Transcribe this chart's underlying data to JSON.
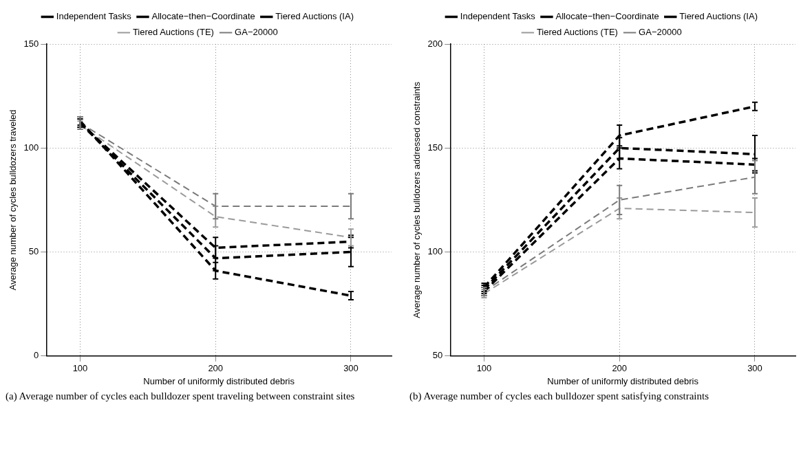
{
  "chart_data": [
    {
      "type": "line",
      "xlabel": "Number of uniformly distributed debris",
      "ylabel": "Average number of cycles bulldozers traveled",
      "x": [
        100,
        200,
        300
      ],
      "xlim": [
        75,
        330
      ],
      "xticks": [
        100,
        200,
        300
      ],
      "ylim": [
        0,
        150
      ],
      "yticks": [
        0,
        50,
        100,
        150
      ],
      "grid": true,
      "legend": "top",
      "line_style": "dashed",
      "annotations": [
        "(a) Average number of cycles each bulldozer spent traveling between constraint sites"
      ],
      "series": [
        {
          "name": "Independent Tasks",
          "color": "#000000",
          "values": [
            113,
            41,
            29
          ],
          "errors": [
            2,
            4,
            2
          ]
        },
        {
          "name": "Allocate−then−Coordinate",
          "color": "#000000",
          "values": [
            112,
            52,
            55
          ],
          "errors": [
            2,
            5,
            3
          ]
        },
        {
          "name": "Tiered Auctions (IA)",
          "color": "#000000",
          "values": [
            112,
            47,
            50
          ],
          "errors": [
            2,
            6,
            7
          ]
        },
        {
          "name": "Tiered Auctions (TE)",
          "color": "#9a9a9a",
          "values": [
            111,
            67,
            57
          ],
          "errors": [
            2,
            5,
            4
          ]
        },
        {
          "name": "GA−20000",
          "color": "#7a7a7a",
          "values": [
            112,
            72,
            72
          ],
          "errors": [
            3,
            6,
            6
          ]
        }
      ]
    },
    {
      "type": "line",
      "xlabel": "Number of uniformly distributed debris",
      "ylabel": "Average number of cycles bulldozers addressed constraints",
      "x": [
        100,
        200,
        300
      ],
      "xlim": [
        75,
        330
      ],
      "xticks": [
        100,
        200,
        300
      ],
      "ylim": [
        50,
        200
      ],
      "yticks": [
        50,
        100,
        150,
        200
      ],
      "grid": true,
      "legend": "top",
      "line_style": "dashed",
      "annotations": [
        "(b) Average number of cycles each bulldozer spent satisfying constraints"
      ],
      "series": [
        {
          "name": "Independent Tasks",
          "color": "#000000",
          "values": [
            83,
            156,
            170
          ],
          "errors": [
            2,
            5,
            2
          ]
        },
        {
          "name": "Allocate−then−Coordinate",
          "color": "#000000",
          "values": [
            82,
            150,
            147
          ],
          "errors": [
            2,
            5,
            9
          ]
        },
        {
          "name": "Tiered Auctions (IA)",
          "color": "#000000",
          "values": [
            81,
            145,
            142
          ],
          "errors": [
            2,
            5,
            3
          ]
        },
        {
          "name": "Tiered Auctions (TE)",
          "color": "#9a9a9a",
          "values": [
            80,
            121,
            119
          ],
          "errors": [
            2,
            5,
            7
          ]
        },
        {
          "name": "GA−20000",
          "color": "#7a7a7a",
          "values": [
            81,
            125,
            136
          ],
          "errors": [
            2,
            7,
            8
          ]
        }
      ]
    }
  ]
}
